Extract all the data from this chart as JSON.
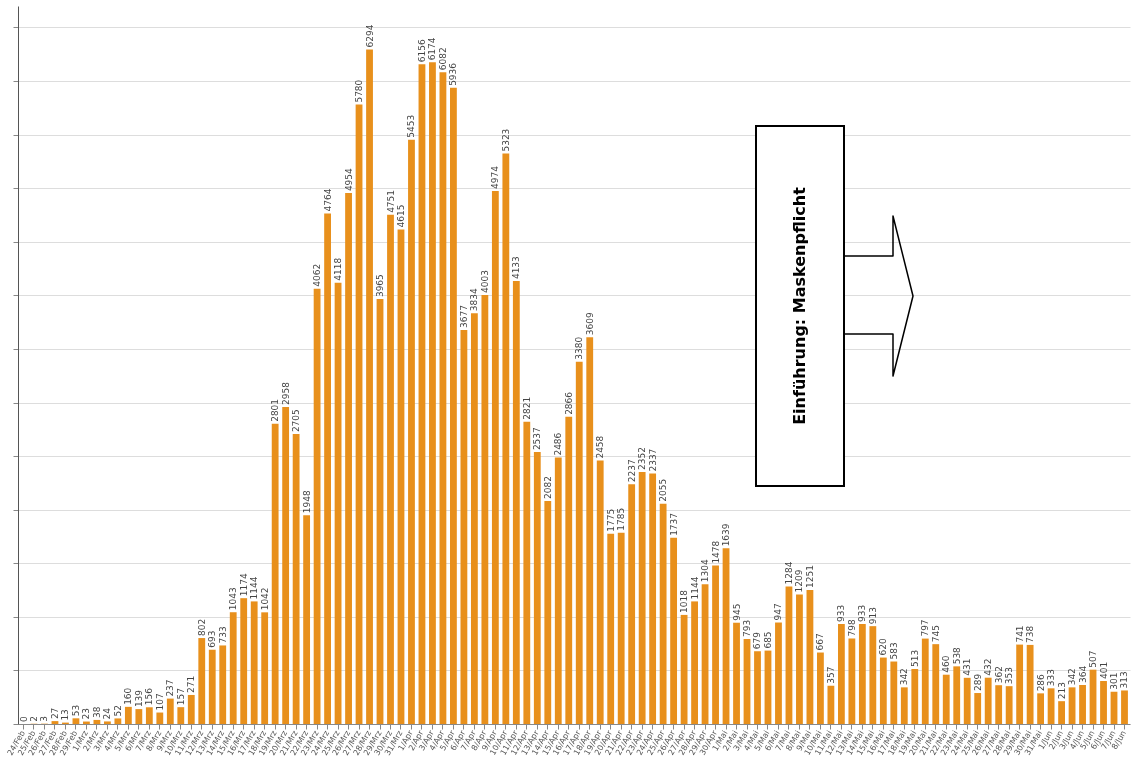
{
  "chart_data": {
    "type": "bar",
    "categories": [
      "24/Feb",
      "25/Feb",
      "26/Feb",
      "27/Feb",
      "28/Feb",
      "29/Feb",
      "1/Mrz",
      "2/Mrz",
      "3/Mrz",
      "4/Mrz",
      "5/Mrz",
      "6/Mrz",
      "7/Mrz",
      "8/Mrz",
      "9/Mrz",
      "10/Mrz",
      "11/Mrz",
      "12/Mrz",
      "13/Mrz",
      "14/Mrz",
      "15/Mrz",
      "16/Mrz",
      "17/Mrz",
      "18/Mrz",
      "19/Mrz",
      "20/Mrz",
      "21/Mrz",
      "22/Mrz",
      "23/Mrz",
      "24/Mrz",
      "25/Mrz",
      "26/Mrz",
      "27/Mrz",
      "28/Mrz",
      "29/Mrz",
      "30/Mrz",
      "31/Mrz",
      "1/Apr",
      "2/Apr",
      "3/Apr",
      "4/Apr",
      "5/Apr",
      "6/Apr",
      "7/Apr",
      "8/Apr",
      "9/Apr",
      "10/Apr",
      "11/Apr",
      "12/Apr",
      "13/Apr",
      "14/Apr",
      "15/Apr",
      "16/Apr",
      "17/Apr",
      "18/Apr",
      "19/Apr",
      "20/Apr",
      "21/Apr",
      "22/Apr",
      "23/Apr",
      "24/Apr",
      "25/Apr",
      "26/Apr",
      "27/Apr",
      "28/Apr",
      "29/Apr",
      "30/Apr",
      "1/Mai",
      "2/Mai",
      "3/Mai",
      "4/Mai",
      "5/Mai",
      "6/Mai",
      "7/Mai",
      "8/Mai",
      "9/Mai",
      "10/Mai",
      "11/Mai",
      "12/Mai",
      "13/Mai",
      "14/Mai",
      "15/Mai",
      "16/Mai",
      "17/Mai",
      "18/Mai",
      "19/Mai",
      "20/Mai",
      "21/Mai",
      "22/Mai",
      "23/Mai",
      "24/Mai",
      "25/Mai",
      "26/Mai",
      "27/Mai",
      "28/Mai",
      "29/Mai",
      "30/Mai",
      "31/Mai",
      "1/Jun",
      "2/Jun",
      "3/Jun",
      "4/Jun",
      "5/Jun",
      "6/Jun",
      "7/Jun",
      "8/Jun"
    ],
    "values": [
      0,
      2,
      3,
      27,
      13,
      53,
      23,
      38,
      24,
      52,
      160,
      139,
      156,
      107,
      237,
      157,
      271,
      802,
      693,
      733,
      1043,
      1174,
      1144,
      1042,
      2801,
      2958,
      2705,
      1948,
      4062,
      4764,
      4118,
      4954,
      5780,
      6294,
      3965,
      4751,
      4615,
      5453,
      6156,
      6174,
      6082,
      5936,
      3677,
      3834,
      4003,
      4974,
      5323,
      4133,
      2821,
      2537,
      2082,
      2486,
      2866,
      3380,
      3609,
      2458,
      1775,
      1785,
      2237,
      2352,
      2337,
      2055,
      1737,
      1018,
      1144,
      1304,
      1478,
      1639,
      945,
      793,
      679,
      685,
      947,
      1284,
      1209,
      1251,
      667,
      357,
      933,
      798,
      933,
      913,
      620,
      583,
      342,
      513,
      797,
      745,
      460,
      538,
      431,
      289,
      432,
      362,
      353,
      741,
      738,
      286,
      333,
      213,
      342,
      364,
      507,
      401,
      301,
      313
    ],
    "color": "#e8901c",
    "data_labels": true,
    "ylim": [
      0,
      6700
    ],
    "yticks": [
      {
        "value": 0,
        "label": null
      },
      {
        "value": 500,
        "label": null
      },
      {
        "value": 1000,
        "label": null
      },
      {
        "value": 1500,
        "label": null
      },
      {
        "value": 2000,
        "label": null
      },
      {
        "value": 2500,
        "label": null
      },
      {
        "value": 3000,
        "label": null
      },
      {
        "value": 3500,
        "label": null
      },
      {
        "value": 4000,
        "label": null
      },
      {
        "value": 4500,
        "label": null
      },
      {
        "value": 5000,
        "label": null
      },
      {
        "value": 5500,
        "label": null
      },
      {
        "value": 6000,
        "label": null
      },
      {
        "value": 6500,
        "label": null
      }
    ],
    "tick_labels": "x",
    "grid": "y",
    "annotations": [
      "Einführung: Maskenpflicht"
    ]
  }
}
